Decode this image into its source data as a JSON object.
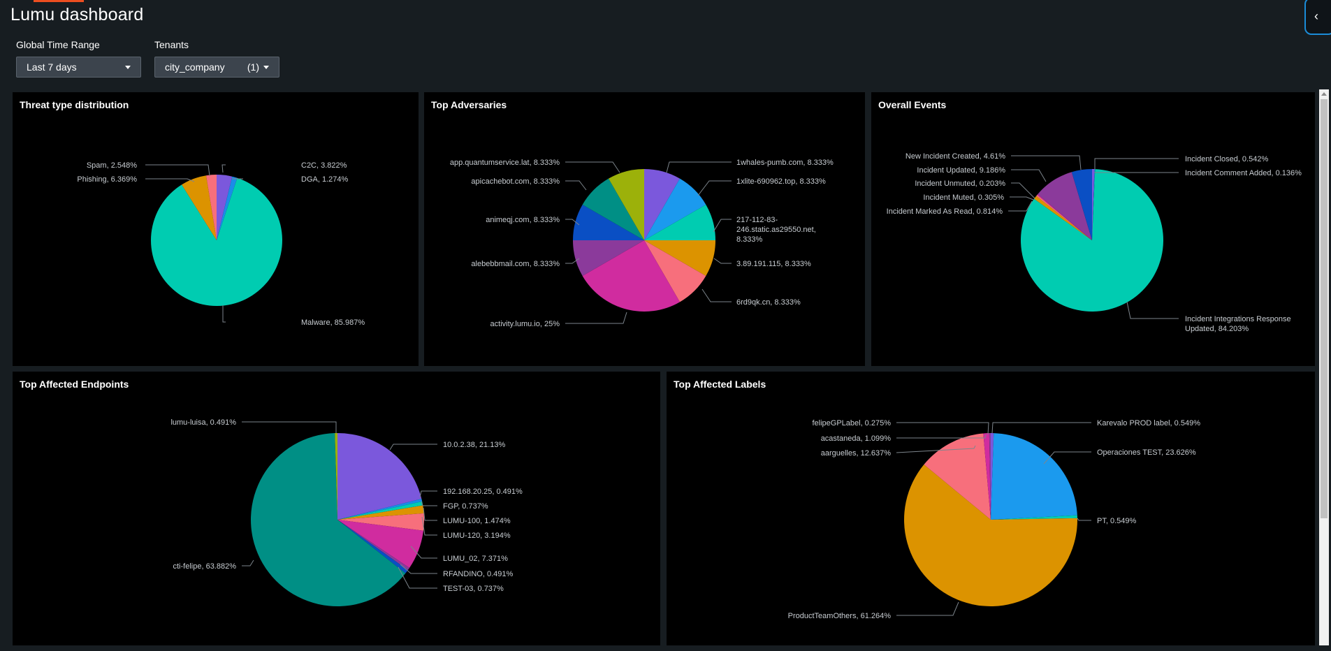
{
  "app": {
    "title": "Lumu dashboard",
    "accent_color": "#ec4e20",
    "collapse_icon": "chevron-left-icon"
  },
  "filters": {
    "time_range": {
      "label": "Global Time Range",
      "value": "Last 7 days"
    },
    "tenants": {
      "label": "Tenants",
      "value": "city_company",
      "count": "(1)"
    }
  },
  "panels": {
    "threat": {
      "title": "Threat type distribution"
    },
    "adversaries": {
      "title": "Top Adversaries"
    },
    "events": {
      "title": "Overall Events"
    },
    "endpoints": {
      "title": "Top Affected Endpoints"
    },
    "labels": {
      "title": "Top Affected Labels"
    }
  },
  "chart_data": [
    {
      "id": "threat",
      "type": "pie",
      "slices": [
        {
          "name": "C2C",
          "value": 3.822,
          "color": "#7b58dc"
        },
        {
          "name": "DGA",
          "value": 1.274,
          "color": "#1b8ce8"
        },
        {
          "name": "Malware",
          "value": 85.987,
          "color": "#00ccb1"
        },
        {
          "name": "Phishing",
          "value": 6.369,
          "color": "#dc9300"
        },
        {
          "name": "Spam",
          "value": 2.548,
          "color": "#f76f7c"
        }
      ],
      "labels": [
        {
          "text": "C2C, 3.822%",
          "slice": 0
        },
        {
          "text": "DGA, 1.274%",
          "slice": 1
        },
        {
          "text": "Malware, 85.987%",
          "slice": 2
        },
        {
          "text": "Phishing, 6.369%",
          "slice": 3
        },
        {
          "text": "Spam, 2.548%",
          "slice": 4
        }
      ]
    },
    {
      "id": "adversaries",
      "type": "pie",
      "slices": [
        {
          "name": "1whales-pumb.com",
          "value": 8.333,
          "color": "#7b58dc"
        },
        {
          "name": "1xlite-690962.top",
          "value": 8.333,
          "color": "#1b9aee"
        },
        {
          "name": "217-112-83-246.static.as29550.net",
          "value": 8.333,
          "color": "#00ccb1"
        },
        {
          "name": "3.89.191.115",
          "value": 8.333,
          "color": "#dc9300"
        },
        {
          "name": "6rd9qk.cn",
          "value": 8.333,
          "color": "#f76f7c"
        },
        {
          "name": "activity.lumu.io",
          "value": 25,
          "color": "#d02c9f"
        },
        {
          "name": "alebebbmail.com",
          "value": 8.333,
          "color": "#8b3a9b"
        },
        {
          "name": "animeqj.com",
          "value": 8.333,
          "color": "#0a4fc4"
        },
        {
          "name": "apicachebot.com",
          "value": 8.333,
          "color": "#008f85"
        },
        {
          "name": "app.quantumservice.lat",
          "value": 8.333,
          "color": "#9cb10a"
        }
      ],
      "labels": [
        {
          "text": "1whales-pumb.com, 8.333%",
          "slice": 0
        },
        {
          "text": "1xlite-690962.top, 8.333%",
          "slice": 1
        },
        {
          "text": "217-112-83-",
          "slice": 2
        },
        {
          "text": "246.static.as29550.net,",
          "slice": 2
        },
        {
          "text": "8.333%",
          "slice": 2
        },
        {
          "text": "3.89.191.115, 8.333%",
          "slice": 3
        },
        {
          "text": "6rd9qk.cn, 8.333%",
          "slice": 4
        },
        {
          "text": "activity.lumu.io, 25%",
          "slice": 5
        },
        {
          "text": "alebebbmail.com, 8.333%",
          "slice": 6
        },
        {
          "text": "animeqj.com, 8.333%",
          "slice": 7
        },
        {
          "text": "apicachebot.com, 8.333%",
          "slice": 8
        },
        {
          "text": "app.quantumservice.lat, 8.333%",
          "slice": 9
        }
      ]
    },
    {
      "id": "events",
      "type": "pie",
      "slices": [
        {
          "name": "Incident Closed",
          "value": 0.542,
          "color": "#7b58dc"
        },
        {
          "name": "Incident Comment Added",
          "value": 0.136,
          "color": "#1b8ce8"
        },
        {
          "name": "Incident Integrations Response Updated",
          "value": 84.203,
          "color": "#00ccb1"
        },
        {
          "name": "Incident Marked As Read",
          "value": 0.814,
          "color": "#dc9300"
        },
        {
          "name": "Incident Muted",
          "value": 0.305,
          "color": "#f76f7c"
        },
        {
          "name": "Incident Unmuted",
          "value": 0.203,
          "color": "#d02c9f"
        },
        {
          "name": "Incident Updated",
          "value": 9.186,
          "color": "#8b3a9b"
        },
        {
          "name": "New Incident Created",
          "value": 4.61,
          "color": "#0a4fc4"
        }
      ],
      "labels": [
        {
          "text": "Incident Closed, 0.542%",
          "slice": 0
        },
        {
          "text": "Incident Comment Added, 0.136%",
          "slice": 1
        },
        {
          "text": "Incident Integrations Response",
          "slice": 2
        },
        {
          "text": "Updated, 84.203%",
          "slice": 2
        },
        {
          "text": "Incident Marked As Read, 0.814%",
          "slice": 3
        },
        {
          "text": "Incident Muted, 0.305%",
          "slice": 4
        },
        {
          "text": "Incident Unmuted, 0.203%",
          "slice": 5
        },
        {
          "text": "Incident Updated, 9.186%",
          "slice": 6
        },
        {
          "text": "New Incident Created, 4.61%",
          "slice": 7
        }
      ]
    },
    {
      "id": "endpoints",
      "type": "pie",
      "slices": [
        {
          "name": "10.0.2.38",
          "value": 21.13,
          "color": "#7b58dc"
        },
        {
          "name": "192.168.20.25",
          "value": 0.491,
          "color": "#1b8ce8"
        },
        {
          "name": "FGP",
          "value": 0.737,
          "color": "#00ccb1"
        },
        {
          "name": "LUMU-100",
          "value": 1.474,
          "color": "#dc9300"
        },
        {
          "name": "LUMU-120",
          "value": 3.194,
          "color": "#f76f7c"
        },
        {
          "name": "LUMU_02",
          "value": 7.371,
          "color": "#d02c9f"
        },
        {
          "name": "RFANDINO",
          "value": 0.491,
          "color": "#8b3a9b"
        },
        {
          "name": "TEST-03",
          "value": 0.737,
          "color": "#0a4fc4"
        },
        {
          "name": "cti-felipe",
          "value": 63.882,
          "color": "#008f85"
        },
        {
          "name": "lumu-luisa",
          "value": 0.491,
          "color": "#9cb10a"
        }
      ],
      "labels": [
        {
          "text": "10.0.2.38, 21.13%",
          "slice": 0
        },
        {
          "text": "192.168.20.25, 0.491%",
          "slice": 1
        },
        {
          "text": "FGP, 0.737%",
          "slice": 2
        },
        {
          "text": "LUMU-100, 1.474%",
          "slice": 3
        },
        {
          "text": "LUMU-120, 3.194%",
          "slice": 4
        },
        {
          "text": "LUMU_02, 7.371%",
          "slice": 5
        },
        {
          "text": "RFANDINO, 0.491%",
          "slice": 6
        },
        {
          "text": "TEST-03, 0.737%",
          "slice": 7
        },
        {
          "text": "cti-felipe, 63.882%",
          "slice": 8
        },
        {
          "text": "lumu-luisa, 0.491%",
          "slice": 9
        }
      ]
    },
    {
      "id": "labels",
      "type": "pie",
      "slices": [
        {
          "name": "Karevalo PROD label",
          "value": 0.549,
          "color": "#7b58dc"
        },
        {
          "name": "Operaciones TEST",
          "value": 23.626,
          "color": "#1b9aee"
        },
        {
          "name": "PT",
          "value": 0.549,
          "color": "#00ccb1"
        },
        {
          "name": "ProductTeamOthers",
          "value": 61.264,
          "color": "#dc9300"
        },
        {
          "name": "aarguelles",
          "value": 12.637,
          "color": "#f76f7c"
        },
        {
          "name": "acastaneda",
          "value": 1.099,
          "color": "#d02c9f"
        },
        {
          "name": "felipeGPLabel",
          "value": 0.275,
          "color": "#8b3a9b"
        }
      ],
      "labels": [
        {
          "text": "Karevalo PROD label, 0.549%",
          "slice": 0
        },
        {
          "text": "Operaciones TEST, 23.626%",
          "slice": 1
        },
        {
          "text": "PT, 0.549%",
          "slice": 2
        },
        {
          "text": "ProductTeamOthers, 61.264%",
          "slice": 3
        },
        {
          "text": "aarguelles, 12.637%",
          "slice": 4
        },
        {
          "text": "acastaneda, 1.099%",
          "slice": 5
        },
        {
          "text": "felipeGPLabel, 0.275%",
          "slice": 6
        }
      ]
    }
  ]
}
